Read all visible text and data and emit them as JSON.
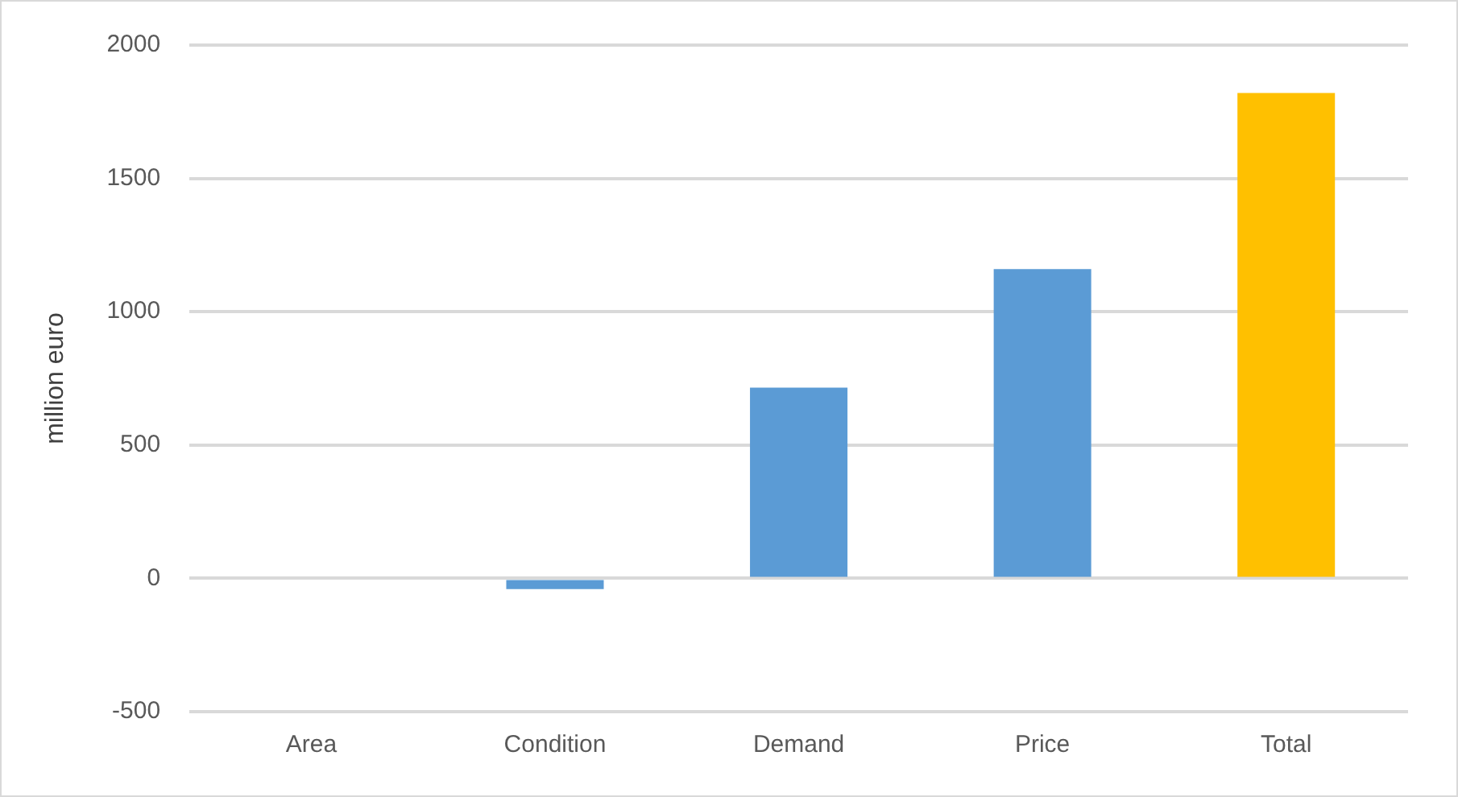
{
  "chart_data": {
    "type": "bar",
    "ylabel": "million euro",
    "categories": [
      "Area",
      "Condition",
      "Demand",
      "Price",
      "Total"
    ],
    "values": [
      0,
      -40,
      715,
      1160,
      1820
    ],
    "colors": [
      "#5b9bd5",
      "#5b9bd5",
      "#5b9bd5",
      "#5b9bd5",
      "#ffc000"
    ],
    "ylim": [
      -500,
      2000
    ],
    "yticks": [
      -500,
      0,
      500,
      1000,
      1500,
      2000
    ],
    "grid": "y",
    "legend": false
  }
}
